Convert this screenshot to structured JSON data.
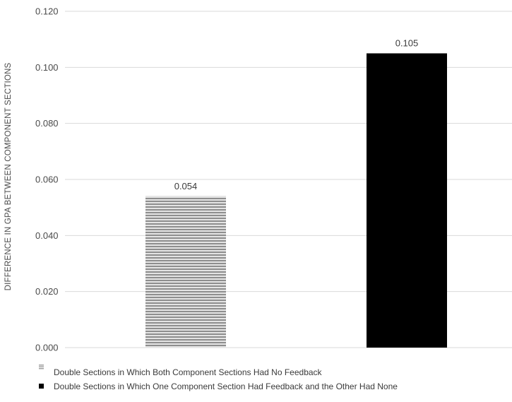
{
  "chart_data": {
    "type": "bar",
    "title": "",
    "xlabel": "",
    "ylabel": "DIFFERENCE IN GPA BETWEEN COMPONENT SECTIONS",
    "ylim": [
      0,
      0.12
    ],
    "yticks": [
      0.0,
      0.02,
      0.04,
      0.06,
      0.08,
      0.1,
      0.12
    ],
    "ytick_labels": [
      "0.000",
      "0.020",
      "0.040",
      "0.060",
      "0.080",
      "0.100",
      "0.120"
    ],
    "grid": "horizontal",
    "legend_position": "bottom-left",
    "series": [
      {
        "name": "Double Sections in Which Both Component Sections Had No Feedback",
        "value": 0.054,
        "label": "0.054",
        "pattern": "horizontal-stripes",
        "color": "#9a9a9a"
      },
      {
        "name": "Double Sections in Which One Component Section Had Feedback and the Other Had None",
        "value": 0.105,
        "label": "0.105",
        "pattern": "solid",
        "color": "#000000"
      }
    ]
  }
}
